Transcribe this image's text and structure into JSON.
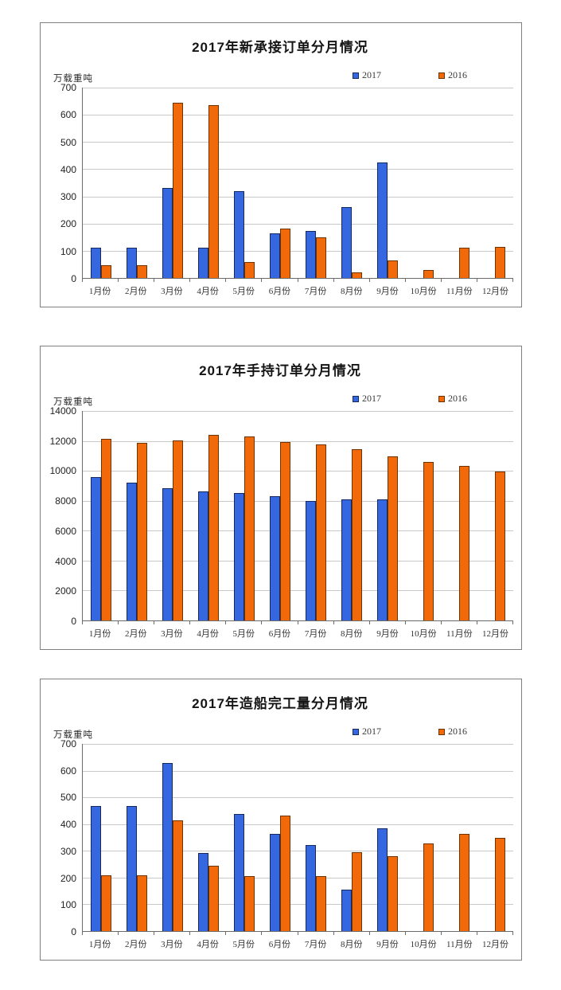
{
  "colors": {
    "series_2017_fill": "#3567E0",
    "series_2017_border": "#16295f",
    "series_2016_fill": "#F2690A",
    "series_2016_border": "#6e3300",
    "grid": "#c9c9c9",
    "axis": "#6b6b6b",
    "panel_border": "#7f7f7f"
  },
  "chart_data": [
    {
      "type": "bar",
      "title": "2017年新承接订单分月情况",
      "ylabel": "万载重吨",
      "xlabel": "",
      "ylim": [
        0,
        700
      ],
      "ytick_step": 100,
      "grid": true,
      "legend_position": "top-right",
      "categories": [
        "1月份",
        "2月份",
        "3月份",
        "4月份",
        "5月份",
        "6月份",
        "7月份",
        "8月份",
        "9月份",
        "10月份",
        "11月份",
        "12月份"
      ],
      "series": [
        {
          "name": "2017",
          "color": "#3567E0",
          "border": "#16295f",
          "values": [
            110,
            110,
            332,
            112,
            320,
            165,
            172,
            260,
            425,
            null,
            null,
            null
          ]
        },
        {
          "name": "2016",
          "color": "#F2690A",
          "border": "#6e3300",
          "values": [
            48,
            48,
            645,
            637,
            58,
            182,
            148,
            20,
            65,
            30,
            110,
            113
          ]
        }
      ]
    },
    {
      "type": "bar",
      "title": "2017年手持订单分月情况",
      "ylabel": "万载重吨",
      "xlabel": "",
      "ylim": [
        0,
        14000
      ],
      "ytick_step": 2000,
      "grid": true,
      "legend_position": "top-right",
      "categories": [
        "1月份",
        "2月份",
        "3月份",
        "4月份",
        "5月份",
        "6月份",
        "7月份",
        "8月份",
        "9月份",
        "10月份",
        "11月份",
        "12月份"
      ],
      "series": [
        {
          "name": "2017",
          "color": "#3567E0",
          "border": "#16295f",
          "values": [
            9600,
            9200,
            8850,
            8650,
            8500,
            8280,
            8000,
            8100,
            8100,
            null,
            null,
            null
          ]
        },
        {
          "name": "2016",
          "color": "#F2690A",
          "border": "#6e3300",
          "values": [
            12150,
            11880,
            12050,
            12400,
            12300,
            11930,
            11750,
            11430,
            10950,
            10600,
            10320,
            9950
          ]
        }
      ]
    },
    {
      "type": "bar",
      "title": "2017年造船完工量分月情况",
      "ylabel": "万载重吨",
      "xlabel": "",
      "ylim": [
        0,
        700
      ],
      "ytick_step": 100,
      "grid": true,
      "legend_position": "top-right",
      "categories": [
        "1月份",
        "2月份",
        "3月份",
        "4月份",
        "5月份",
        "6月份",
        "7月份",
        "8月份",
        "9月份",
        "10月份",
        "11月份",
        "12月份"
      ],
      "series": [
        {
          "name": "2017",
          "color": "#3567E0",
          "border": "#16295f",
          "values": [
            468,
            468,
            630,
            291,
            437,
            362,
            323,
            156,
            383,
            null,
            null,
            null
          ]
        },
        {
          "name": "2016",
          "color": "#F2690A",
          "border": "#6e3300",
          "values": [
            210,
            210,
            415,
            245,
            205,
            432,
            207,
            296,
            279,
            329,
            362,
            350
          ]
        }
      ]
    }
  ]
}
